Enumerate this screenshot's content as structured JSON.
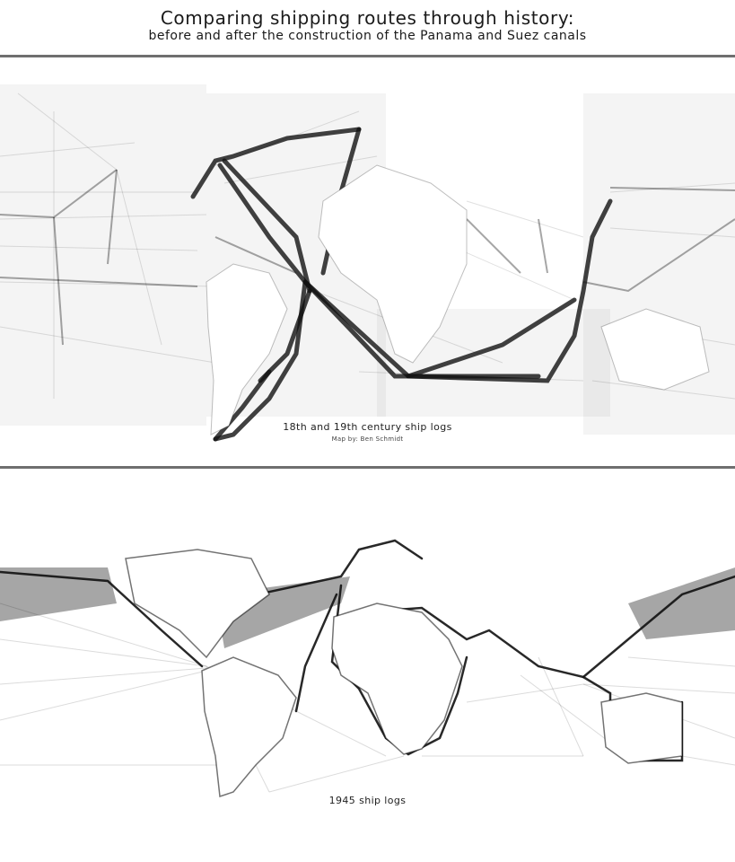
{
  "header": {
    "title": "Comparing shipping routes through history:",
    "subtitle": "before and after the construction of the Panama and Suez canals"
  },
  "maps": [
    {
      "caption": "18th and 19th century ship logs",
      "credit": "Map by: Ben Schmidt"
    },
    {
      "caption": "1945 ship logs"
    }
  ],
  "colors": {
    "background": "#ffffff",
    "routes": "#111111",
    "divider": "#6f6f6f"
  }
}
